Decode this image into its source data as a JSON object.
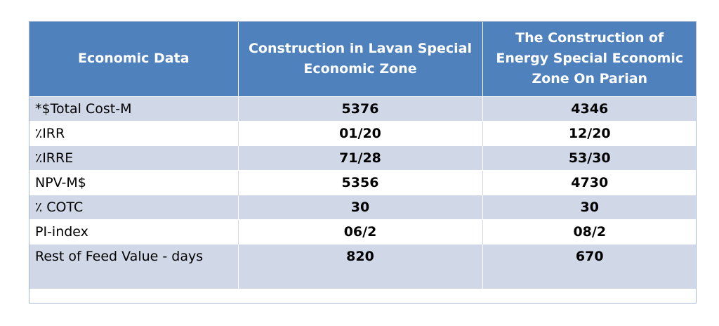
{
  "table": {
    "headers": [
      "Economic Data",
      "Construction in Lavan Special Economic Zone",
      "The Construction of Energy Special Economic Zone On Parian"
    ],
    "rows": [
      {
        "label": "*$Total Cost-M",
        "lavan": "5376",
        "parian": "4346"
      },
      {
        "label": "٪IRR",
        "lavan": "01/20",
        "parian": "12/20"
      },
      {
        "label": "٪IRRE",
        "lavan": "71/28",
        "parian": "53/30"
      },
      {
        "label": "NPV-M$",
        "lavan": "5356",
        "parian": "4730"
      },
      {
        "label": "٪ COTC",
        "lavan": "30",
        "parian": "30"
      },
      {
        "label": "PI-index",
        "lavan": "06/2",
        "parian": "08/2"
      },
      {
        "label": "Rest of Feed Value - days",
        "lavan": "820",
        "parian": "670"
      }
    ]
  },
  "colors": {
    "header_bg": "#4f81bd",
    "band_bg": "#d0d8e8",
    "plain_bg": "#ffffff"
  }
}
